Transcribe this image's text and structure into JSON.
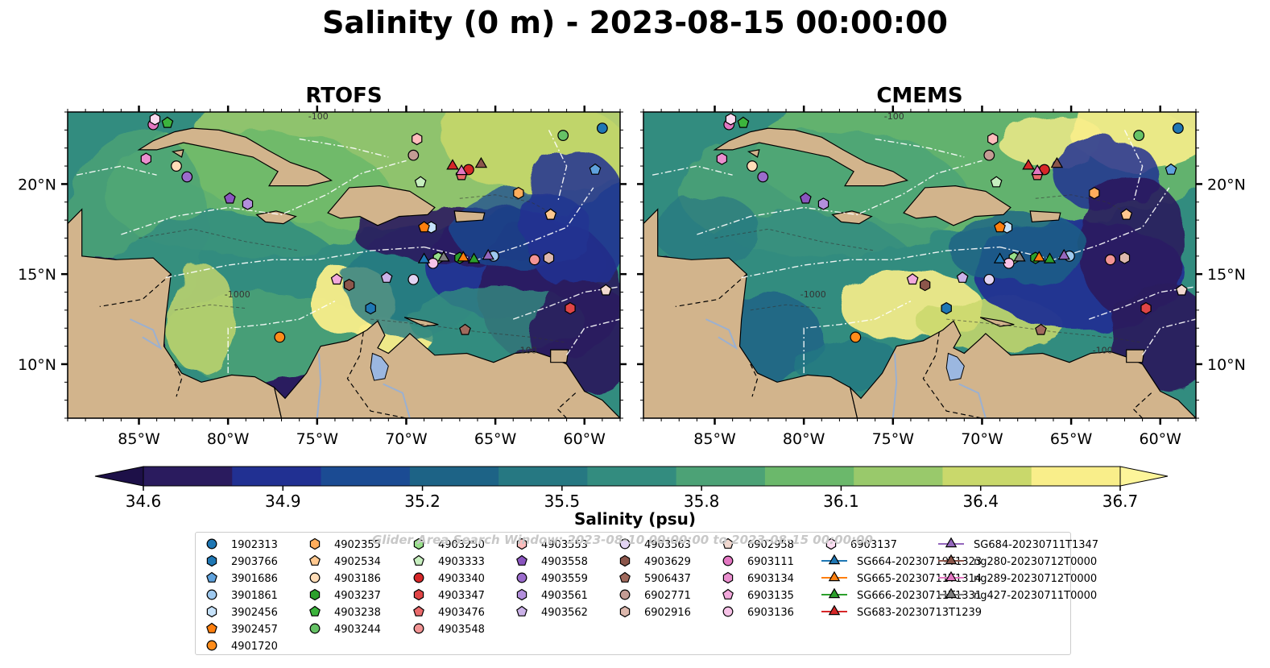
{
  "title": "Salinity (0 m) - 2023-08-15 00:00:00",
  "panels": [
    {
      "id": "rtofs",
      "title": "RTOFS"
    },
    {
      "id": "cmems",
      "title": "CMEMS"
    }
  ],
  "watermark": "Glider Area Search Window: 2023-08-10 00:00:00 to 2023-08-15 00:00:00",
  "chart_data": {
    "type": "heatmap",
    "variable": "Salinity (0 m)",
    "colorbar": {
      "label": "Salinity (psu)",
      "min": 34.6,
      "max": 36.7,
      "ticks": [
        34.6,
        34.9,
        35.2,
        35.5,
        35.8,
        36.1,
        36.4,
        36.7
      ],
      "tick_labels": [
        "34.6",
        "34.9",
        "35.2",
        "35.5",
        "35.8",
        "36.1",
        "36.4",
        "36.7"
      ],
      "extend": "both",
      "colors": [
        "#2a1b5e",
        "#213092",
        "#1b4b93",
        "#1d6386",
        "#267882",
        "#338c7f",
        "#4ca276",
        "#6bb86b",
        "#99c96b",
        "#c9d86b",
        "#f9ee8a"
      ]
    },
    "x_axis": {
      "lon_min": -89,
      "lon_max": -58,
      "ticks": [
        -85,
        -80,
        -75,
        -70,
        -65,
        -60
      ],
      "tick_labels": [
        "85°W",
        "80°W",
        "75°W",
        "70°W",
        "65°W",
        "60°W"
      ]
    },
    "y_axis": {
      "lat_min": 7,
      "lat_max": 24,
      "ticks": [
        10,
        15,
        20
      ],
      "tick_labels": [
        "10°N",
        "15°N",
        "20°N"
      ]
    },
    "contour_labels": [
      "-100",
      "-1000"
    ],
    "legend_location": "bottom",
    "legend": [
      {
        "name": "1902313",
        "marker": "circle",
        "color": "#1f77b4"
      },
      {
        "name": "2903766",
        "marker": "hexagon",
        "color": "#1f77b4"
      },
      {
        "name": "3901686",
        "marker": "pentagon",
        "color": "#5fa2dd"
      },
      {
        "name": "3901861",
        "marker": "circle",
        "color": "#9ec9ef"
      },
      {
        "name": "3902456",
        "marker": "hexagon",
        "color": "#c6e2fa"
      },
      {
        "name": "3902457",
        "marker": "pentagon",
        "color": "#ff7f0e"
      },
      {
        "name": "4901720",
        "marker": "circle",
        "color": "#ff8c1a"
      },
      {
        "name": "4902355",
        "marker": "hexagon",
        "color": "#ffad5c"
      },
      {
        "name": "4902534",
        "marker": "pentagon",
        "color": "#ffc88f"
      },
      {
        "name": "4903186",
        "marker": "circle",
        "color": "#ffddb8"
      },
      {
        "name": "4903237",
        "marker": "hexagon",
        "color": "#2ca02c"
      },
      {
        "name": "4903238",
        "marker": "pentagon",
        "color": "#3cb43c"
      },
      {
        "name": "4903244",
        "marker": "circle",
        "color": "#66c266"
      },
      {
        "name": "4903250",
        "marker": "hexagon",
        "color": "#98df8a"
      },
      {
        "name": "4903333",
        "marker": "pentagon",
        "color": "#c7efbf"
      },
      {
        "name": "4903340",
        "marker": "circle",
        "color": "#d62728"
      },
      {
        "name": "4903347",
        "marker": "hexagon",
        "color": "#e04546"
      },
      {
        "name": "4903476",
        "marker": "pentagon",
        "color": "#ea6a6b"
      },
      {
        "name": "4903548",
        "marker": "circle",
        "color": "#f29494"
      },
      {
        "name": "4903553",
        "marker": "hexagon",
        "color": "#ffbcbc"
      },
      {
        "name": "4903558",
        "marker": "pentagon",
        "color": "#8a55bf"
      },
      {
        "name": "4903559",
        "marker": "circle",
        "color": "#9b6ccc"
      },
      {
        "name": "4903561",
        "marker": "hexagon",
        "color": "#b38fdc"
      },
      {
        "name": "4903562",
        "marker": "pentagon",
        "color": "#cbb2e8"
      },
      {
        "name": "4903563",
        "marker": "circle",
        "color": "#e2d4f3"
      },
      {
        "name": "4903629",
        "marker": "hexagon",
        "color": "#8c564b"
      },
      {
        "name": "5906437",
        "marker": "pentagon",
        "color": "#a06a5d"
      },
      {
        "name": "6902771",
        "marker": "circle",
        "color": "#c49c94"
      },
      {
        "name": "6902916",
        "marker": "hexagon",
        "color": "#ddb8ad"
      },
      {
        "name": "6902958",
        "marker": "pentagon",
        "color": "#f1d8cf"
      },
      {
        "name": "6903111",
        "marker": "circle",
        "color": "#e377c2"
      },
      {
        "name": "6903134",
        "marker": "hexagon",
        "color": "#ea8fcf"
      },
      {
        "name": "6903135",
        "marker": "pentagon",
        "color": "#f2a9dc"
      },
      {
        "name": "6903136",
        "marker": "circle",
        "color": "#f7c2e7"
      },
      {
        "name": "6903137",
        "marker": "hexagon",
        "color": "#fbdcf1"
      },
      {
        "name": "SG664-20230719T1323",
        "marker": "triangle",
        "color": "#1f77b4",
        "line": true
      },
      {
        "name": "SG665-20230711T1314",
        "marker": "triangle",
        "color": "#ff7f0e",
        "line": true
      },
      {
        "name": "SG666-20230711T1331",
        "marker": "triangle",
        "color": "#2ca02c",
        "line": true
      },
      {
        "name": "SG683-20230713T1239",
        "marker": "triangle",
        "color": "#d62728",
        "line": true
      },
      {
        "name": "SG684-20230711T1347",
        "marker": "triangle",
        "color": "#9467bd",
        "line": true
      },
      {
        "name": "ng280-20230712T0000",
        "marker": "triangle",
        "color": "#8c564b",
        "line": true
      },
      {
        "name": "ng289-20230712T0000",
        "marker": "triangle",
        "color": "#e377c2",
        "line": true
      },
      {
        "name": "ng427-20230711T0000",
        "marker": "triangle",
        "color": "#7f7f7f",
        "line": true
      }
    ],
    "points": [
      {
        "lon": -59.0,
        "lat": 23.1,
        "id": "1902313"
      },
      {
        "lon": -72.0,
        "lat": 13.1,
        "id": "2903766"
      },
      {
        "lon": -59.4,
        "lat": 20.8,
        "id": "3901686"
      },
      {
        "lon": -65.1,
        "lat": 16.0,
        "id": "3901861"
      },
      {
        "lon": -68.6,
        "lat": 17.6,
        "id": "3902456"
      },
      {
        "lon": -69.0,
        "lat": 17.6,
        "id": "3902457"
      },
      {
        "lon": -77.1,
        "lat": 11.5,
        "id": "4901720"
      },
      {
        "lon": -63.7,
        "lat": 19.5,
        "id": "4902355"
      },
      {
        "lon": -61.9,
        "lat": 18.3,
        "id": "4902534"
      },
      {
        "lon": -82.9,
        "lat": 21.0,
        "id": "4903186"
      },
      {
        "lon": -67.0,
        "lat": 15.9,
        "id": "4903237"
      },
      {
        "lon": -83.4,
        "lat": 23.4,
        "id": "4903238"
      },
      {
        "lon": -61.2,
        "lat": 22.7,
        "id": "4903244"
      },
      {
        "lon": -68.2,
        "lat": 15.9,
        "id": "4903250"
      },
      {
        "lon": -69.2,
        "lat": 20.1,
        "id": "4903333"
      },
      {
        "lon": -66.5,
        "lat": 20.8,
        "id": "4903340"
      },
      {
        "lon": -60.8,
        "lat": 13.1,
        "id": "4903347"
      },
      {
        "lon": -66.9,
        "lat": 20.5,
        "id": "4903476"
      },
      {
        "lon": -62.8,
        "lat": 15.8,
        "id": "4903548"
      },
      {
        "lon": -69.4,
        "lat": 22.5,
        "id": "4903553"
      },
      {
        "lon": -79.9,
        "lat": 19.2,
        "id": "4903558"
      },
      {
        "lon": -82.3,
        "lat": 20.4,
        "id": "4903559"
      },
      {
        "lon": -78.9,
        "lat": 18.9,
        "id": "4903561"
      },
      {
        "lon": -71.1,
        "lat": 14.8,
        "id": "4903562"
      },
      {
        "lon": -69.6,
        "lat": 14.7,
        "id": "4903563"
      },
      {
        "lon": -73.2,
        "lat": 14.4,
        "id": "4903629"
      },
      {
        "lon": -66.7,
        "lat": 11.9,
        "id": "5906437"
      },
      {
        "lon": -69.6,
        "lat": 21.6,
        "id": "6902771"
      },
      {
        "lon": -62.0,
        "lat": 15.9,
        "id": "6902916"
      },
      {
        "lon": -58.8,
        "lat": 14.1,
        "id": "6902958"
      },
      {
        "lon": -84.2,
        "lat": 23.3,
        "id": "6903111"
      },
      {
        "lon": -84.6,
        "lat": 21.4,
        "id": "6903134"
      },
      {
        "lon": -73.9,
        "lat": 14.7,
        "id": "6903135"
      },
      {
        "lon": -68.5,
        "lat": 15.6,
        "id": "6903136"
      },
      {
        "lon": -84.1,
        "lat": 23.6,
        "id": "6903137"
      },
      {
        "lon": -69.0,
        "lat": 15.8,
        "id": "SG664-20230719T1323"
      },
      {
        "lon": -66.8,
        "lat": 15.9,
        "id": "SG665-20230711T1314"
      },
      {
        "lon": -66.2,
        "lat": 15.8,
        "id": "SG666-20230711T1331"
      },
      {
        "lon": -67.4,
        "lat": 21.0,
        "id": "SG683-20230713T1239"
      },
      {
        "lon": -65.4,
        "lat": 16.0,
        "id": "SG684-20230711T1347"
      },
      {
        "lon": -65.8,
        "lat": 21.1,
        "id": "ng280-20230712T0000"
      },
      {
        "lon": -66.9,
        "lat": 20.7,
        "id": "ng289-20230712T0000"
      },
      {
        "lon": -67.9,
        "lat": 15.9,
        "id": "ng427-20230711T0000"
      }
    ]
  }
}
